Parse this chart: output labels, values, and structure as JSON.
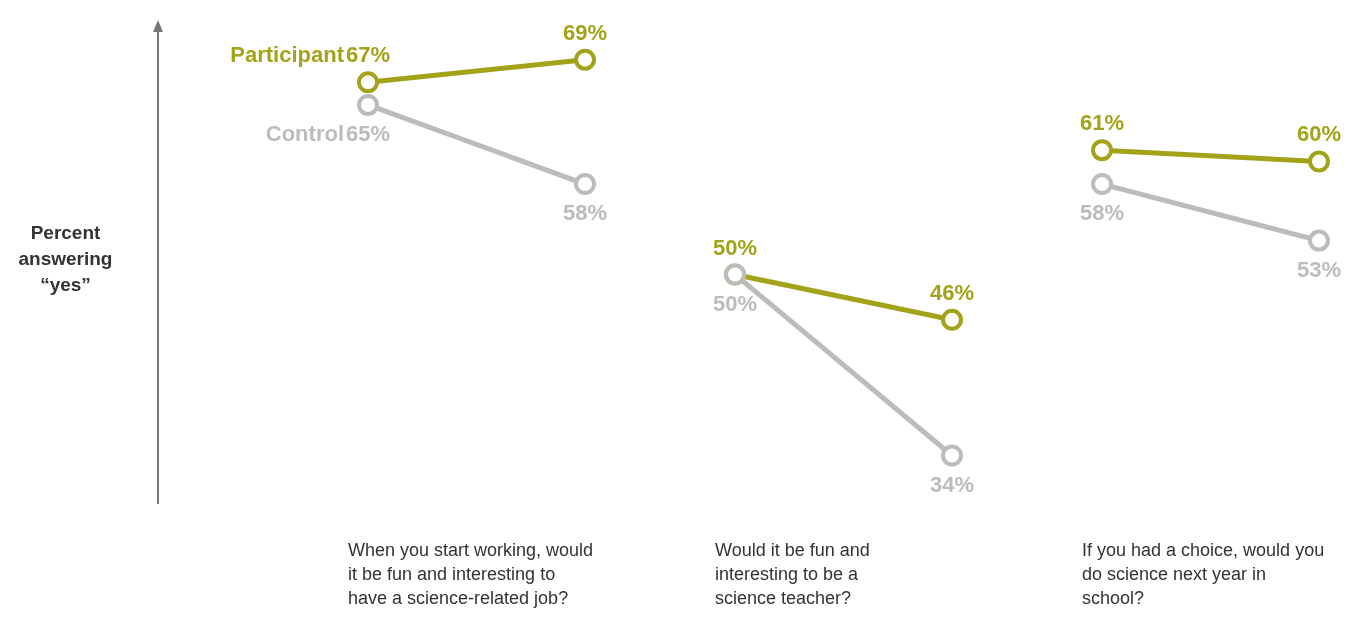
{
  "chart_data": [
    {
      "type": "line",
      "ylabel": "Percent answering “yes”",
      "xlabel": "When you start working, would it be fun and interesting to have a science-related job?",
      "categories": [
        null,
        null
      ],
      "marker": "circle",
      "tick_labels": false,
      "series": [
        {
          "name": "Participant",
          "color": "#a3a319",
          "values": [
            67,
            69
          ],
          "value_labels": [
            "67%",
            "69%"
          ]
        },
        {
          "name": "Control",
          "color": "#bcbcbc",
          "values": [
            65,
            58
          ],
          "value_labels": [
            "65%",
            "58%"
          ]
        }
      ]
    },
    {
      "type": "line",
      "xlabel": "Would it be fun and interesting to be a science teacher?",
      "categories": [
        null,
        null
      ],
      "marker": "circle",
      "tick_labels": false,
      "series": [
        {
          "color": "#a3a319",
          "values": [
            50,
            46
          ],
          "value_labels": [
            "50%",
            "46%"
          ]
        },
        {
          "color": "#bcbcbc",
          "values": [
            50,
            34
          ],
          "value_labels": [
            "50%",
            "34%"
          ]
        }
      ]
    },
    {
      "type": "line",
      "xlabel": "If you had a choice, would you do science next year in school?",
      "categories": [
        null,
        null
      ],
      "marker": "circle",
      "tick_labels": false,
      "series": [
        {
          "color": "#a3a319",
          "values": [
            61,
            60
          ],
          "value_labels": [
            "61%",
            "60%"
          ]
        },
        {
          "color": "#bcbcbc",
          "values": [
            58,
            53
          ],
          "value_labels": [
            "58%",
            "53%"
          ]
        }
      ]
    }
  ]
}
